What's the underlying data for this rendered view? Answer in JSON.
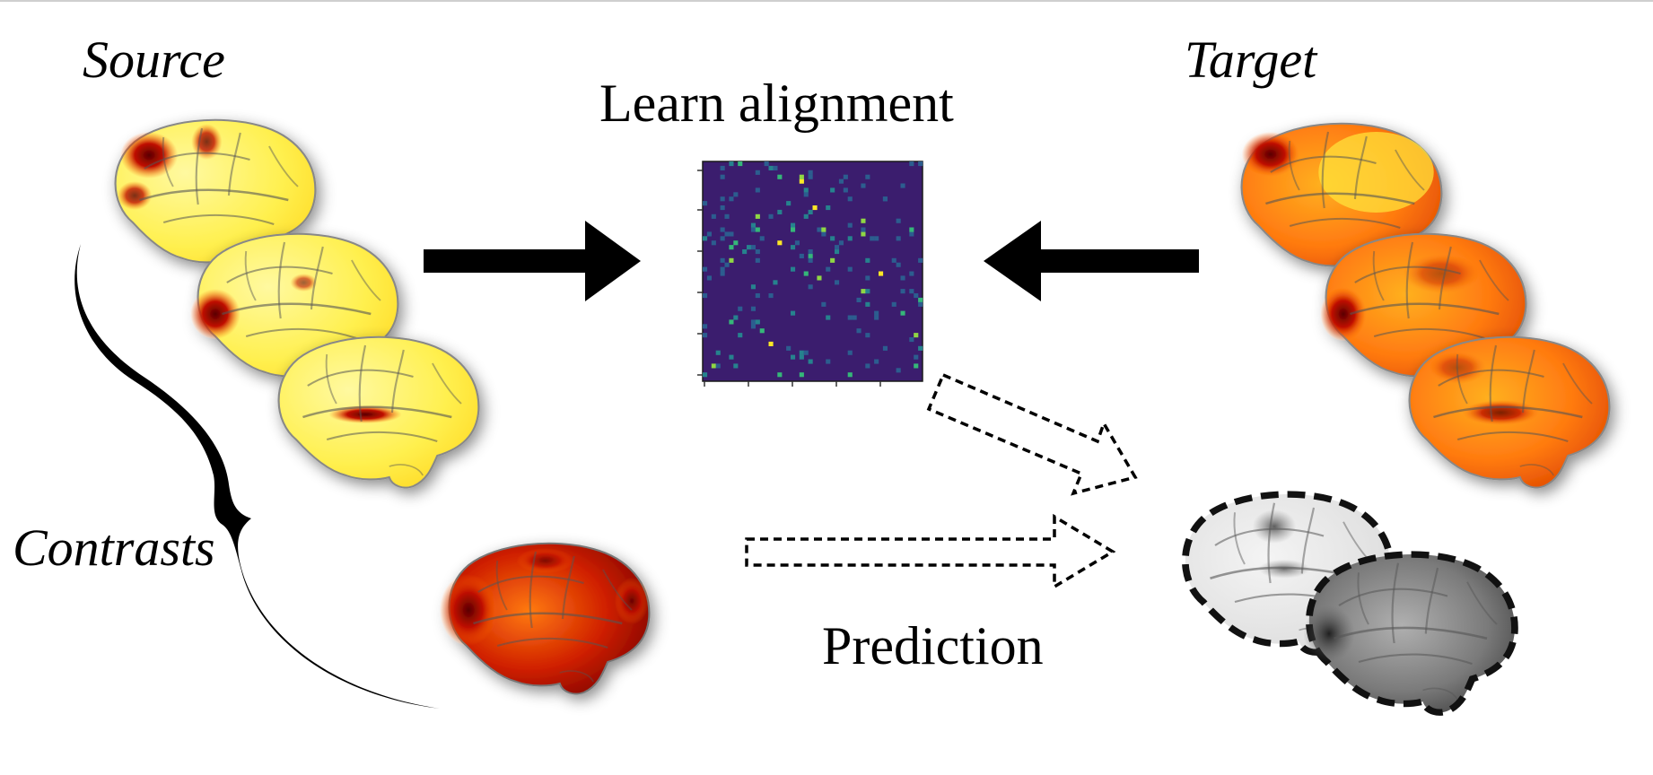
{
  "labels": {
    "source": "Source",
    "target": "Target",
    "learn_alignment": "Learn alignment",
    "contrasts": "Contrasts",
    "prediction": "Prediction"
  },
  "colors": {
    "matrix_bg": "#3b1d6e",
    "matrix_cells": [
      "#2c5d8f",
      "#26828e",
      "#35b779",
      "#8fd744",
      "#fde725"
    ],
    "heat_light": "#fff36b",
    "heat_mid": "#ff8a1f",
    "heat_dark": "#a00000",
    "arrow": "#000000"
  },
  "icons": {
    "solid_arrow": "arrow-right-icon",
    "dashed_arrow": "dashed-arrow-icon",
    "brace": "curly-brace-icon"
  }
}
